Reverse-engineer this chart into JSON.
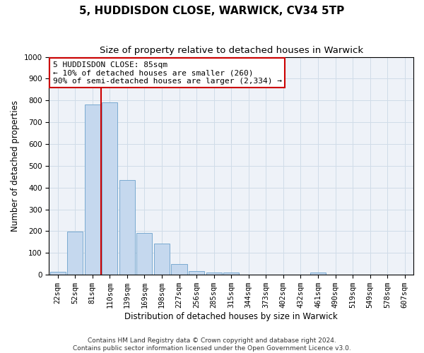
{
  "title": "5, HUDDISDON CLOSE, WARWICK, CV34 5TP",
  "subtitle": "Size of property relative to detached houses in Warwick",
  "xlabel": "Distribution of detached houses by size in Warwick",
  "ylabel": "Number of detached properties",
  "bar_color": "#c5d8ee",
  "bar_edge_color": "#7aaad0",
  "grid_color": "#d0dce8",
  "background_color": "#eef2f8",
  "categories": [
    "22sqm",
    "52sqm",
    "81sqm",
    "110sqm",
    "139sqm",
    "169sqm",
    "198sqm",
    "227sqm",
    "256sqm",
    "285sqm",
    "315sqm",
    "344sqm",
    "373sqm",
    "402sqm",
    "432sqm",
    "461sqm",
    "490sqm",
    "519sqm",
    "549sqm",
    "578sqm",
    "607sqm"
  ],
  "values": [
    15,
    197,
    783,
    790,
    435,
    193,
    143,
    50,
    18,
    10,
    10,
    0,
    0,
    0,
    0,
    12,
    0,
    0,
    0,
    0,
    0
  ],
  "ylim": [
    0,
    1000
  ],
  "yticks": [
    0,
    100,
    200,
    300,
    400,
    500,
    600,
    700,
    800,
    900,
    1000
  ],
  "vline_x": 2.5,
  "vline_color": "#cc0000",
  "annotation_text": "5 HUDDISDON CLOSE: 85sqm\n← 10% of detached houses are smaller (260)\n90% of semi-detached houses are larger (2,334) →",
  "annotation_box_color": "#ffffff",
  "annotation_box_edge": "#cc0000",
  "footer_text": "Contains HM Land Registry data © Crown copyright and database right 2024.\nContains public sector information licensed under the Open Government Licence v3.0.",
  "title_fontsize": 11,
  "subtitle_fontsize": 9.5,
  "axis_label_fontsize": 8.5,
  "tick_fontsize": 7.5,
  "annotation_fontsize": 8,
  "footer_fontsize": 6.5
}
